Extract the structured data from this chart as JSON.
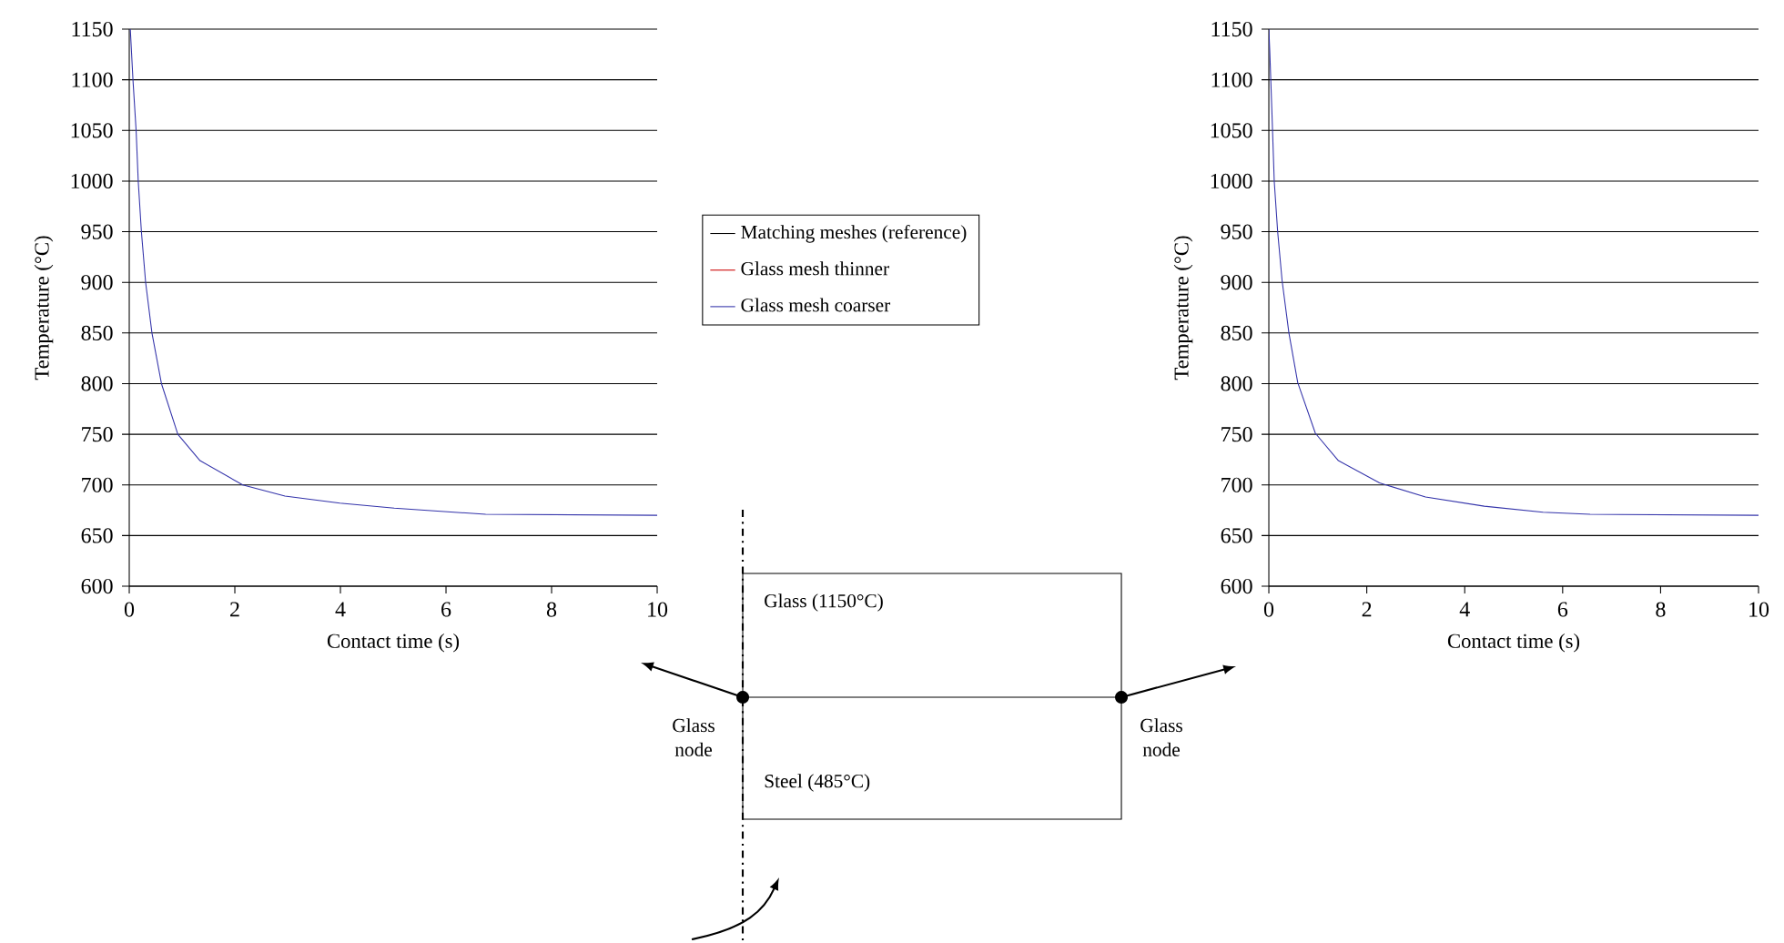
{
  "chart_data": [
    {
      "type": "line",
      "xlabel": "Contact time (s)",
      "ylabel": "Temperature (°C)",
      "xlim": [
        0,
        10
      ],
      "ylim": [
        600,
        1150
      ],
      "xticks": [
        0,
        2,
        4,
        6,
        8,
        10
      ],
      "yticks": [
        600,
        650,
        700,
        750,
        800,
        850,
        900,
        950,
        1000,
        1050,
        1100,
        1150
      ],
      "grid": "y",
      "legend": "right",
      "line_style": "solid",
      "x": [
        0.02,
        0.07,
        0.13,
        0.17,
        0.23,
        0.31,
        0.43,
        0.61,
        0.92,
        1.34,
        2.15,
        2.95,
        3.99,
        5.02,
        6.75,
        10
      ],
      "series": [
        {
          "name": "Matching meshes (reference)",
          "color": "#000000",
          "values": [
            null,
            null,
            null,
            null,
            null,
            null,
            null,
            null,
            null,
            null,
            null,
            null,
            null,
            null,
            null,
            null
          ]
        },
        {
          "name": "Glass mesh thinner",
          "color": "#cc0000",
          "values": [
            null,
            null,
            null,
            null,
            null,
            null,
            null,
            null,
            null,
            null,
            null,
            null,
            null,
            null,
            null,
            null
          ]
        },
        {
          "name": "Glass mesh coarser",
          "color": "#3333aa",
          "values": [
            1150,
            1100,
            1050,
            1000,
            950,
            900,
            850,
            800,
            750,
            724,
            700,
            689,
            682,
            677,
            671,
            670
          ]
        }
      ],
      "annotations": [
        "Glass (1150°C)",
        "Steel (485°C)",
        "Glass node",
        "Glass node"
      ]
    },
    {
      "type": "line",
      "xlabel": "Contact time (s)",
      "ylabel": "Temperature (°C)",
      "xlim": [
        0,
        10
      ],
      "ylim": [
        600,
        1150
      ],
      "xticks": [
        0,
        2,
        4,
        6,
        8,
        10
      ],
      "yticks": [
        600,
        650,
        700,
        750,
        800,
        850,
        900,
        950,
        1000,
        1050,
        1100,
        1150
      ],
      "grid": "y",
      "line_style": "solid",
      "x": [
        0,
        0.02,
        0.06,
        0.11,
        0.18,
        0.27,
        0.41,
        0.59,
        0.95,
        1.42,
        2.26,
        3.2,
        4.4,
        5.6,
        6.56,
        10
      ],
      "series": [
        {
          "color": "#3333aa",
          "values": [
            1150,
            1127,
            1072,
            1000,
            950,
            902,
            850,
            801,
            751,
            724,
            702,
            688,
            679,
            673,
            671,
            670
          ]
        }
      ]
    }
  ]
}
